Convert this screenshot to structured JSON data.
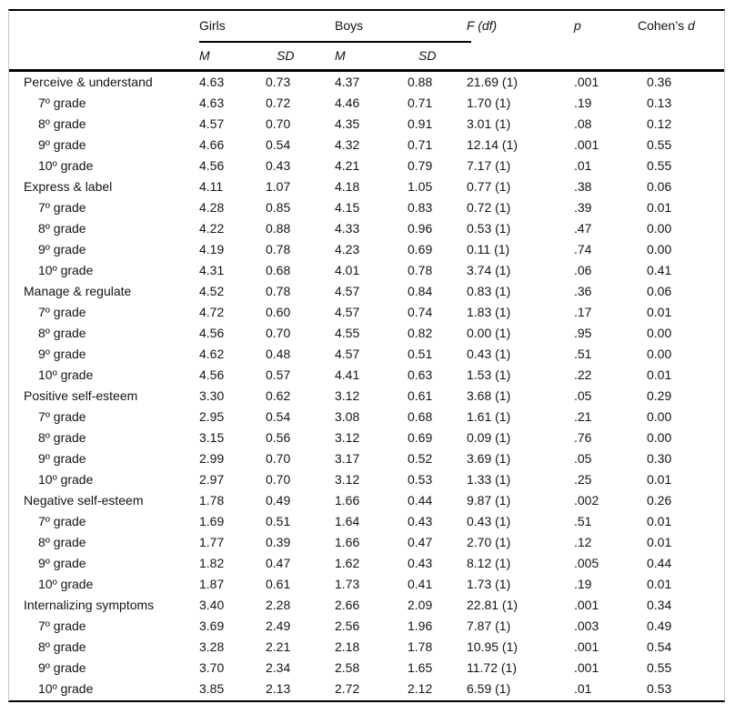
{
  "table": {
    "header": {
      "group1": "Girls",
      "group2": "Boys",
      "f_df": "F (df)",
      "p": "p",
      "cohens_prefix": "Cohen’s",
      "cohens_d": "d",
      "m1": "M",
      "sd1": "SD",
      "m2": "M",
      "sd2": "SD"
    },
    "rows": [
      {
        "label": "Perceive & understand",
        "indent": false,
        "cells": [
          "4.63",
          "0.73",
          "4.37",
          "0.88",
          "21.69 (1)",
          ".001",
          "0.36"
        ]
      },
      {
        "label": "7º grade",
        "indent": true,
        "cells": [
          "4.63",
          "0.72",
          "4.46",
          "0.71",
          "1.70 (1)",
          ".19",
          "0.13"
        ]
      },
      {
        "label": "8º grade",
        "indent": true,
        "cells": [
          "4.57",
          "0.70",
          "4.35",
          "0.91",
          "3.01 (1)",
          ".08",
          "0.12"
        ]
      },
      {
        "label": "9º grade",
        "indent": true,
        "cells": [
          "4.66",
          "0.54",
          "4.32",
          "0.71",
          "12.14 (1)",
          ".001",
          "0.55"
        ]
      },
      {
        "label": "10º grade",
        "indent": true,
        "cells": [
          "4.56",
          "0.43",
          "4.21",
          "0.79",
          "7.17 (1)",
          ".01",
          "0.55"
        ]
      },
      {
        "label": "Express & label",
        "indent": false,
        "cells": [
          "4.11",
          "1.07",
          "4.18",
          "1.05",
          "0.77 (1)",
          ".38",
          "0.06"
        ]
      },
      {
        "label": "7º grade",
        "indent": true,
        "cells": [
          "4.28",
          "0.85",
          "4.15",
          "0.83",
          "0.72 (1)",
          ".39",
          "0.01"
        ]
      },
      {
        "label": "8º grade",
        "indent": true,
        "cells": [
          "4.22",
          "0.88",
          "4.33",
          "0.96",
          "0.53 (1)",
          ".47",
          "0.00"
        ]
      },
      {
        "label": "9º grade",
        "indent": true,
        "cells": [
          "4.19",
          "0.78",
          "4.23",
          "0.69",
          "0.11 (1)",
          ".74",
          "0.00"
        ]
      },
      {
        "label": "10º grade",
        "indent": true,
        "cells": [
          "4.31",
          "0.68",
          "4.01",
          "0.78",
          "3.74 (1)",
          ".06",
          "0.41"
        ]
      },
      {
        "label": "Manage & regulate",
        "indent": false,
        "cells": [
          "4.52",
          "0.78",
          "4.57",
          "0.84",
          "0.83 (1)",
          ".36",
          "0.06"
        ]
      },
      {
        "label": "7º grade",
        "indent": true,
        "cells": [
          "4.72",
          "0.60",
          "4.57",
          "0.74",
          "1.83 (1)",
          ".17",
          "0.01"
        ]
      },
      {
        "label": "8º grade",
        "indent": true,
        "cells": [
          "4.56",
          "0.70",
          "4.55",
          "0.82",
          "0.00 (1)",
          ".95",
          "0.00"
        ]
      },
      {
        "label": "9º grade",
        "indent": true,
        "cells": [
          "4.62",
          "0.48",
          "4.57",
          "0.51",
          "0.43 (1)",
          ".51",
          "0.00"
        ]
      },
      {
        "label": "10º grade",
        "indent": true,
        "cells": [
          "4.56",
          "0.57",
          "4.41",
          "0.63",
          "1.53 (1)",
          ".22",
          "0.01"
        ]
      },
      {
        "label": "Positive self-esteem",
        "indent": false,
        "cells": [
          "3.30",
          "0.62",
          "3.12",
          "0.61",
          "3.68 (1)",
          ".05",
          "0.29"
        ]
      },
      {
        "label": "7º grade",
        "indent": true,
        "cells": [
          "2.95",
          "0.54",
          "3.08",
          "0.68",
          "1.61 (1)",
          ".21",
          "0.00"
        ]
      },
      {
        "label": "8º grade",
        "indent": true,
        "cells": [
          "3.15",
          "0.56",
          "3.12",
          "0.69",
          "0.09 (1)",
          ".76",
          "0.00"
        ]
      },
      {
        "label": "9º grade",
        "indent": true,
        "cells": [
          "2.99",
          "0.70",
          "3.17",
          "0.52",
          "3.69 (1)",
          ".05",
          "0.30"
        ]
      },
      {
        "label": "10º grade",
        "indent": true,
        "cells": [
          "2.97",
          "0.70",
          "3.12",
          "0.53",
          "1.33 (1)",
          ".25",
          "0.01"
        ]
      },
      {
        "label": "Negative self-esteem",
        "indent": false,
        "cells": [
          "1.78",
          "0.49",
          "1.66",
          "0.44",
          "9.87 (1)",
          ".002",
          "0.26"
        ]
      },
      {
        "label": "7º grade",
        "indent": true,
        "cells": [
          "1.69",
          "0.51",
          "1.64",
          "0.43",
          "0.43 (1)",
          ".51",
          "0.01"
        ]
      },
      {
        "label": "8º grade",
        "indent": true,
        "cells": [
          "1.77",
          "0.39",
          "1.66",
          "0.47",
          "2.70 (1)",
          ".12",
          "0.01"
        ]
      },
      {
        "label": "9º grade",
        "indent": true,
        "cells": [
          "1.82",
          "0.47",
          "1.62",
          "0.43",
          "8.12 (1)",
          ".005",
          "0.44"
        ]
      },
      {
        "label": "10º grade",
        "indent": true,
        "cells": [
          "1.87",
          "0.61",
          "1.73",
          "0.41",
          "1.73 (1)",
          ".19",
          "0.01"
        ]
      },
      {
        "label": "Internalizing symptoms",
        "indent": false,
        "cells": [
          "3.40",
          "2.28",
          "2.66",
          "2.09",
          "22.81 (1)",
          ".001",
          "0.34"
        ]
      },
      {
        "label": "7º grade",
        "indent": true,
        "cells": [
          "3.69",
          "2.49",
          "2.56",
          "1.96",
          "7.87 (1)",
          ".003",
          "0.49"
        ]
      },
      {
        "label": "8º grade",
        "indent": true,
        "cells": [
          "3.28",
          "2.21",
          "2.18",
          "1.78",
          "10.95 (1)",
          ".001",
          "0.54"
        ]
      },
      {
        "label": "9º grade",
        "indent": true,
        "cells": [
          "3.70",
          "2.34",
          "2.58",
          "1.65",
          "11.72 (1)",
          ".001",
          "0.55"
        ]
      },
      {
        "label": "10º grade",
        "indent": true,
        "cells": [
          "3.85",
          "2.13",
          "2.72",
          "2.12",
          "6.59 (1)",
          ".01",
          "0.53"
        ]
      }
    ]
  },
  "colors": {
    "rule": "#000000",
    "side_border": "#c6c6c6",
    "text": "#141414",
    "background": "#ffffff"
  }
}
